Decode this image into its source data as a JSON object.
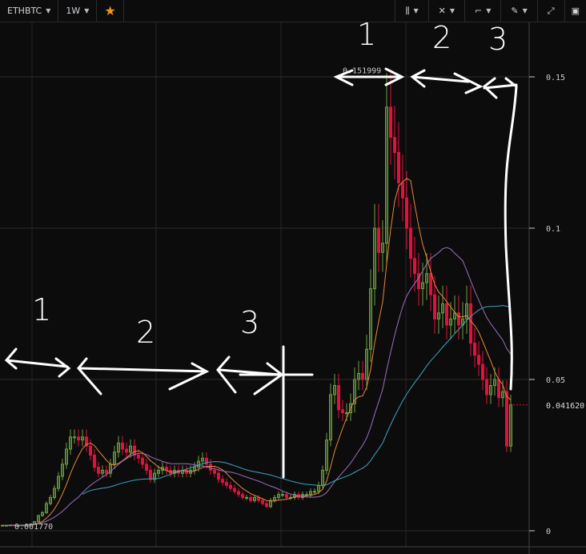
{
  "toolbar": {
    "symbol": "ETHBTC",
    "interval": "1W",
    "favorite_icon": "star-icon",
    "accent": "#f7931a",
    "right_icons": [
      "candles-style-icon",
      "indicators-icon",
      "compare-icon",
      "drawing-pencil-icon",
      "fullscreen-icon",
      "chart-settings-icon"
    ]
  },
  "chart_data": {
    "type": "candlestick",
    "title": "",
    "symbol": "ETHBTC",
    "interval": "1W",
    "y_ticks": [
      "0.15",
      "0.1",
      "0.05",
      "0"
    ],
    "ylim": [
      0,
      0.157
    ],
    "grid": true,
    "closes": [
      0.0018,
      0.0018,
      0.0019,
      0.0018,
      0.0018,
      0.0019,
      0.002,
      0.0022,
      0.003,
      0.005,
      0.006,
      0.009,
      0.011,
      0.014,
      0.018,
      0.022,
      0.027,
      0.031,
      0.031,
      0.03,
      0.031,
      0.028,
      0.025,
      0.021,
      0.019,
      0.02,
      0.019,
      0.022,
      0.026,
      0.029,
      0.027,
      0.026,
      0.028,
      0.025,
      0.024,
      0.022,
      0.02,
      0.017,
      0.019,
      0.02,
      0.021,
      0.02,
      0.019,
      0.02,
      0.019,
      0.02,
      0.019,
      0.02,
      0.021,
      0.023,
      0.024,
      0.022,
      0.02,
      0.019,
      0.017,
      0.016,
      0.015,
      0.014,
      0.013,
      0.012,
      0.011,
      0.011,
      0.01,
      0.011,
      0.01,
      0.009,
      0.008,
      0.01,
      0.011,
      0.012,
      0.012,
      0.011,
      0.011,
      0.012,
      0.011,
      0.012,
      0.012,
      0.013,
      0.013,
      0.015,
      0.02,
      0.03,
      0.045,
      0.048,
      0.04,
      0.039,
      0.039,
      0.042,
      0.05,
      0.052,
      0.05,
      0.06,
      0.08,
      0.1,
      0.092,
      0.095,
      0.14,
      0.13,
      0.125,
      0.115,
      0.11,
      0.1,
      0.09,
      0.085,
      0.08,
      0.082,
      0.085,
      0.078,
      0.07,
      0.072,
      0.075,
      0.068,
      0.07,
      0.072,
      0.068,
      0.07,
      0.075,
      0.062,
      0.058,
      0.055,
      0.05,
      0.045,
      0.048,
      0.05,
      0.044,
      0.046,
      0.028,
      0.0416
    ],
    "high_label": "0.151999",
    "low_label": "0.001770",
    "last_price_label": "0.041620",
    "colors": {
      "up": "#6ba13f",
      "down": "#e0123d",
      "ma_fast": "#e8873a",
      "ma_mid": "#9b6fc4",
      "ma_slow": "#3fa3c4",
      "last_price": "#e0123d"
    },
    "annotations": {
      "top": [
        "1",
        "2",
        "3"
      ],
      "bottom": [
        "1",
        "2",
        "3"
      ]
    }
  }
}
